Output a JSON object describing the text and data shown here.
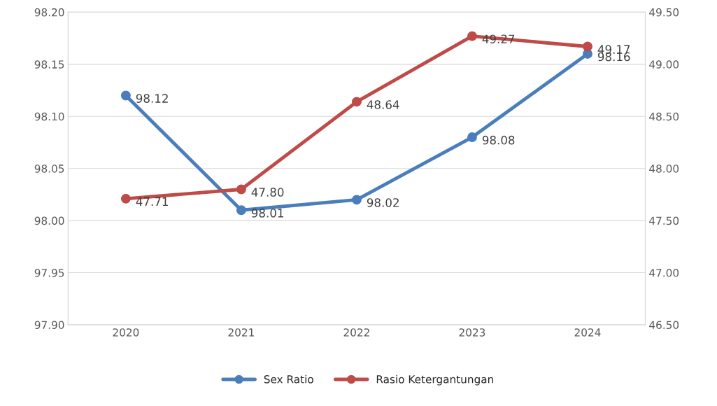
{
  "chart_data": {
    "type": "line",
    "categories": [
      "2020",
      "2021",
      "2022",
      "2023",
      "2024"
    ],
    "series": [
      {
        "name": "Sex Ratio",
        "color": "#4a7ebb",
        "values": [
          98.12,
          98.01,
          98.02,
          98.08,
          98.16
        ],
        "value_labels": [
          "98.12",
          "98.01",
          "98.02",
          "98.08",
          "98.16"
        ]
      },
      {
        "name": "Rasio Ketergantungan",
        "color": "#be4b48",
        "axis": "y2",
        "values": [
          47.71,
          47.8,
          48.64,
          49.27,
          49.17
        ],
        "value_labels": [
          "47.71",
          "47.80",
          "48.64",
          "49.27",
          "49.17"
        ]
      }
    ],
    "ylim": [
      97.9,
      98.2
    ],
    "yticks": [
      {
        "value": 97.9,
        "label": "97.90"
      },
      {
        "value": 97.95,
        "label": "97.95"
      },
      {
        "value": 98.0,
        "label": "98.00"
      },
      {
        "value": 98.05,
        "label": "98.05"
      },
      {
        "value": 98.1,
        "label": "98.10"
      },
      {
        "value": 98.15,
        "label": "98.15"
      },
      {
        "value": 98.2,
        "label": "98.20"
      }
    ],
    "y2lim": [
      46.5,
      49.5
    ],
    "y2ticks": [
      {
        "value": 46.5,
        "label": "46.50"
      },
      {
        "value": 47.0,
        "label": "47.00"
      },
      {
        "value": 47.5,
        "label": "47.50"
      },
      {
        "value": 48.0,
        "label": "48.00"
      },
      {
        "value": 48.5,
        "label": "48.50"
      },
      {
        "value": 49.0,
        "label": "49.00"
      },
      {
        "value": 49.5,
        "label": "49.50"
      }
    ],
    "grid": "y",
    "legend": "bottom",
    "marker": "circle",
    "line_style": "solid"
  }
}
